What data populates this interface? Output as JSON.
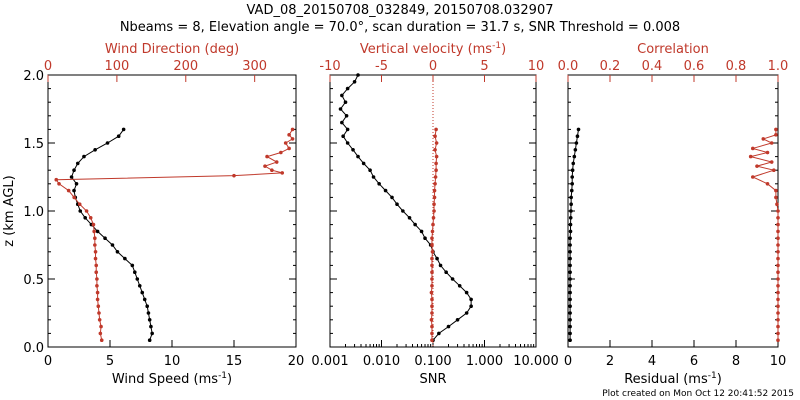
{
  "title_line1": "VAD_08_20150708_032849, 20150708.032907",
  "title_line2": "Nbeams = 8, Elevation angle = 70.0°, scan duration = 31.7 s, SNR Threshold = 0.008",
  "footer": "Plot created on Mon Oct 12 20:41:52 2015",
  "colors": {
    "black_series": "#000000",
    "red_series": "#c0392b"
  },
  "chart_data": [
    {
      "type": "line",
      "name": "wind-panel",
      "ylabel": "z (km AGL)",
      "ylim": [
        0,
        2.0
      ],
      "yticks": [
        "0.0",
        "0.5",
        "1.0",
        "1.5",
        "2.0"
      ],
      "xlabel": "Wind Speed (ms",
      "xlabel_sup": "-1",
      "xlabel_end": ")",
      "xlim": [
        0,
        20
      ],
      "xticks": [
        "0",
        "5",
        "10",
        "15",
        "20"
      ],
      "top_label": "Wind Direction (deg)",
      "top_lim": [
        0,
        360
      ],
      "top_ticks": [
        "0",
        "100",
        "200",
        "300"
      ],
      "series": [
        {
          "name": "Wind Speed",
          "axis": "bottom",
          "color": "#000000",
          "z": [
            0.05,
            0.1,
            0.15,
            0.2,
            0.25,
            0.3,
            0.35,
            0.4,
            0.45,
            0.5,
            0.55,
            0.6,
            0.65,
            0.7,
            0.75,
            0.8,
            0.85,
            0.9,
            0.95,
            1.0,
            1.05,
            1.1,
            1.15,
            1.2,
            1.25,
            1.3,
            1.35,
            1.4,
            1.45,
            1.5,
            1.55,
            1.6
          ],
          "values": [
            8.2,
            8.4,
            8.3,
            8.2,
            8.1,
            8.0,
            7.8,
            7.6,
            7.4,
            7.2,
            7.0,
            6.8,
            6.2,
            5.6,
            5.2,
            4.6,
            4.0,
            3.5,
            3.0,
            2.6,
            2.4,
            2.2,
            2.1,
            2.3,
            1.9,
            2.1,
            2.4,
            2.9,
            3.8,
            4.8,
            5.7,
            6.1
          ]
        },
        {
          "name": "Wind Direction",
          "axis": "top",
          "color": "#c0392b",
          "z": [
            0.05,
            0.1,
            0.15,
            0.2,
            0.25,
            0.3,
            0.35,
            0.4,
            0.45,
            0.5,
            0.55,
            0.6,
            0.65,
            0.7,
            0.75,
            0.8,
            0.85,
            0.9,
            0.95,
            1.0,
            1.05,
            1.1,
            1.15,
            1.2,
            1.23,
            1.26,
            1.28,
            1.3,
            1.33,
            1.36,
            1.4,
            1.43,
            1.46,
            1.5,
            1.53,
            1.56,
            1.6
          ],
          "values": [
            78,
            76,
            77,
            75,
            74,
            73,
            72,
            72,
            71,
            71,
            70,
            70,
            69,
            69,
            68,
            68,
            67,
            66,
            62,
            56,
            46,
            38,
            30,
            16,
            12,
            270,
            340,
            325,
            315,
            332,
            318,
            338,
            350,
            345,
            355,
            350,
            355
          ]
        }
      ]
    },
    {
      "type": "line",
      "name": "snr-panel",
      "ylim": [
        0,
        2.0
      ],
      "xlabel": "SNR",
      "xscale": "log",
      "xlim": [
        0.001,
        10
      ],
      "xticks": [
        "0.001",
        "0.010",
        "0.100",
        "1.000",
        "10.000"
      ],
      "top_label": "Vertical velocity (ms",
      "top_label_sup": "-1",
      "top_label_end": ")",
      "top_lim": [
        -10,
        10
      ],
      "top_ticks": [
        "-10",
        "-5",
        "0",
        "5",
        "10"
      ],
      "series": [
        {
          "name": "SNR",
          "axis": "bottom",
          "color": "#000000",
          "z": [
            0.05,
            0.1,
            0.15,
            0.2,
            0.25,
            0.3,
            0.35,
            0.4,
            0.45,
            0.5,
            0.55,
            0.6,
            0.65,
            0.7,
            0.75,
            0.8,
            0.85,
            0.9,
            0.95,
            1.0,
            1.05,
            1.1,
            1.15,
            1.2,
            1.25,
            1.3,
            1.35,
            1.4,
            1.45,
            1.5,
            1.55,
            1.6,
            1.65,
            1.7,
            1.75,
            1.8,
            1.85,
            1.9,
            1.95,
            2.0
          ],
          "values": [
            0.1,
            0.13,
            0.2,
            0.3,
            0.45,
            0.55,
            0.55,
            0.45,
            0.33,
            0.24,
            0.18,
            0.14,
            0.12,
            0.1,
            0.09,
            0.07,
            0.06,
            0.045,
            0.035,
            0.026,
            0.02,
            0.016,
            0.012,
            0.009,
            0.007,
            0.006,
            0.0045,
            0.0035,
            0.0028,
            0.0022,
            0.0018,
            0.0022,
            0.0017,
            0.0021,
            0.0016,
            0.002,
            0.0017,
            0.0022,
            0.003,
            0.0035
          ]
        },
        {
          "name": "Vertical velocity",
          "axis": "top",
          "color": "#c0392b",
          "z": [
            0.05,
            0.1,
            0.15,
            0.2,
            0.25,
            0.3,
            0.35,
            0.4,
            0.45,
            0.5,
            0.55,
            0.6,
            0.65,
            0.7,
            0.75,
            0.8,
            0.85,
            0.9,
            0.95,
            1.0,
            1.05,
            1.1,
            1.15,
            1.2,
            1.25,
            1.3,
            1.35,
            1.4,
            1.45,
            1.5,
            1.55,
            1.6
          ],
          "values": [
            -0.1,
            -0.1,
            -0.1,
            -0.15,
            -0.1,
            -0.1,
            -0.1,
            -0.15,
            -0.1,
            -0.1,
            -0.1,
            -0.1,
            -0.1,
            -0.05,
            -0.1,
            -0.1,
            -0.05,
            0.0,
            0.05,
            0.1,
            0.1,
            0.15,
            0.15,
            0.2,
            0.25,
            0.3,
            0.3,
            0.35,
            0.2,
            0.35,
            0.2,
            0.3
          ]
        }
      ]
    },
    {
      "type": "line",
      "name": "residual-panel",
      "ylim": [
        0,
        2.0
      ],
      "xlabel": "Residual (ms",
      "xlabel_sup": "-1",
      "xlabel_end": ")",
      "xlim": [
        0,
        10
      ],
      "xticks": [
        "0",
        "2",
        "4",
        "6",
        "8",
        "10"
      ],
      "top_label": "Correlation",
      "top_lim": [
        0,
        1.0
      ],
      "top_ticks": [
        "0.0",
        "0.2",
        "0.4",
        "0.6",
        "0.8",
        "1.0"
      ],
      "series": [
        {
          "name": "Residual",
          "axis": "bottom",
          "color": "#000000",
          "z": [
            0.05,
            0.1,
            0.15,
            0.2,
            0.25,
            0.3,
            0.35,
            0.4,
            0.45,
            0.5,
            0.55,
            0.6,
            0.65,
            0.7,
            0.75,
            0.8,
            0.85,
            0.9,
            0.95,
            1.0,
            1.05,
            1.1,
            1.15,
            1.2,
            1.25,
            1.3,
            1.35,
            1.4,
            1.45,
            1.5,
            1.55,
            1.6
          ],
          "values": [
            0.1,
            0.1,
            0.1,
            0.1,
            0.1,
            0.1,
            0.1,
            0.1,
            0.1,
            0.1,
            0.1,
            0.1,
            0.1,
            0.1,
            0.1,
            0.1,
            0.12,
            0.12,
            0.13,
            0.14,
            0.15,
            0.15,
            0.18,
            0.2,
            0.2,
            0.22,
            0.25,
            0.3,
            0.35,
            0.4,
            0.45,
            0.5
          ]
        },
        {
          "name": "Correlation",
          "axis": "top",
          "color": "#c0392b",
          "z": [
            0.05,
            0.1,
            0.15,
            0.2,
            0.25,
            0.3,
            0.35,
            0.4,
            0.45,
            0.5,
            0.55,
            0.6,
            0.65,
            0.7,
            0.75,
            0.8,
            0.85,
            0.9,
            0.95,
            1.0,
            1.05,
            1.1,
            1.15,
            1.2,
            1.25,
            1.3,
            1.33,
            1.36,
            1.4,
            1.43,
            1.46,
            1.5,
            1.53,
            1.56,
            1.6
          ],
          "values": [
            1.0,
            1.0,
            1.0,
            1.0,
            1.0,
            1.0,
            1.0,
            1.0,
            1.0,
            1.0,
            1.0,
            1.0,
            1.0,
            1.0,
            1.0,
            1.0,
            1.0,
            1.0,
            1.0,
            1.0,
            0.995,
            0.99,
            0.99,
            0.95,
            0.88,
            0.98,
            0.9,
            0.97,
            0.87,
            0.95,
            0.88,
            0.97,
            0.93,
            0.99,
            0.99
          ]
        }
      ]
    }
  ]
}
